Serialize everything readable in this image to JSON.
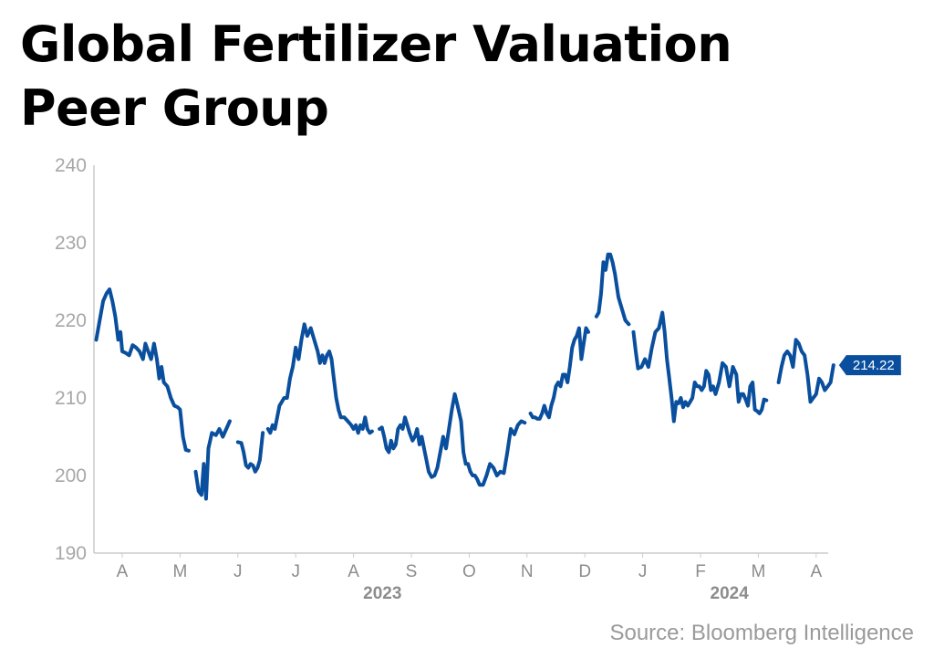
{
  "title_line1": "Global Fertilizer Valuation",
  "title_line2": "Peer Group",
  "source": "Source: Bloomberg Intelligence",
  "colors": {
    "line": "#0a4f9e",
    "axis": "#cccccc",
    "label_bg": "#0a4f9e"
  },
  "chart_data": {
    "type": "line",
    "title": "Global Fertilizer Valuation Peer Group",
    "xlabel": "",
    "ylabel": "",
    "ylim": [
      190,
      240
    ],
    "yticks": [
      190,
      200,
      210,
      220,
      230,
      240
    ],
    "x_tick_labels": [
      "A",
      "M",
      "J",
      "J",
      "A",
      "S",
      "O",
      "N",
      "D",
      "J",
      "F",
      "M",
      "A"
    ],
    "year_labels": [
      {
        "label": "2023",
        "month_index": 4.5
      },
      {
        "label": "2024",
        "month_index": 10.5
      }
    ],
    "x_unit": "months since 2023-04-01",
    "last_value_label": "214.22",
    "series": [
      {
        "name": "Global Fertilizer Valuation Peer Group",
        "segments": [
          [
            [
              -0.45,
              217.5
            ],
            [
              -0.39,
              220
            ],
            [
              -0.33,
              222.5
            ],
            [
              -0.27,
              223.5
            ],
            [
              -0.22,
              224
            ],
            [
              -0.17,
              222.5
            ],
            [
              -0.12,
              220.5
            ],
            [
              -0.07,
              217.5
            ],
            [
              -0.03,
              218.5
            ],
            [
              0.0,
              216
            ],
            [
              0.06,
              215.8
            ],
            [
              0.12,
              215.5
            ],
            [
              0.18,
              216.8
            ],
            [
              0.24,
              216.5
            ],
            [
              0.3,
              216
            ],
            [
              0.36,
              215
            ],
            [
              0.4,
              217
            ],
            [
              0.45,
              216
            ],
            [
              0.5,
              215
            ],
            [
              0.55,
              217
            ],
            [
              0.6,
              215
            ],
            [
              0.64,
              212.5
            ],
            [
              0.68,
              214
            ],
            [
              0.72,
              212
            ],
            [
              0.78,
              211.5
            ],
            [
              0.84,
              210
            ],
            [
              0.9,
              209
            ],
            [
              0.96,
              208.8
            ],
            [
              1.0,
              208.5
            ],
            [
              1.05,
              205
            ],
            [
              1.1,
              203.3
            ],
            [
              1.15,
              203.2
            ]
          ],
          [
            [
              1.27,
              200.5
            ],
            [
              1.32,
              198
            ],
            [
              1.37,
              197.5
            ],
            [
              1.41,
              201.5
            ],
            [
              1.45,
              197
            ],
            [
              1.49,
              203.5
            ],
            [
              1.55,
              205.5
            ],
            [
              1.62,
              205.2
            ],
            [
              1.68,
              206
            ],
            [
              1.74,
              205
            ],
            [
              1.8,
              206
            ],
            [
              1.86,
              207
            ]
          ],
          [
            [
              2.0,
              204.3
            ],
            [
              2.06,
              204.2
            ],
            [
              2.1,
              203
            ],
            [
              2.14,
              201.3
            ],
            [
              2.18,
              201
            ],
            [
              2.22,
              201.5
            ],
            [
              2.26,
              201.3
            ],
            [
              2.3,
              200.5
            ],
            [
              2.34,
              201
            ],
            [
              2.38,
              202
            ],
            [
              2.43,
              205.5
            ]
          ],
          [
            [
              2.52,
              206
            ],
            [
              2.56,
              205.5
            ],
            [
              2.6,
              206.5
            ],
            [
              2.64,
              206
            ],
            [
              2.68,
              207.5
            ],
            [
              2.72,
              209
            ],
            [
              2.76,
              209.5
            ],
            [
              2.8,
              210
            ],
            [
              2.85,
              210
            ],
            [
              2.9,
              212.5
            ],
            [
              2.95,
              214
            ],
            [
              3.0,
              216.5
            ],
            [
              3.05,
              215
            ],
            [
              3.1,
              217.5
            ],
            [
              3.15,
              219.5
            ],
            [
              3.2,
              218
            ],
            [
              3.26,
              219
            ],
            [
              3.32,
              217.5
            ],
            [
              3.38,
              216
            ],
            [
              3.42,
              214.5
            ],
            [
              3.46,
              215.5
            ],
            [
              3.5,
              214.5
            ],
            [
              3.54,
              215.5
            ],
            [
              3.58,
              216
            ],
            [
              3.62,
              215
            ],
            [
              3.66,
              212.5
            ],
            [
              3.7,
              210
            ],
            [
              3.74,
              208.5
            ],
            [
              3.78,
              207.5
            ],
            [
              3.84,
              207.5
            ],
            [
              3.9,
              207
            ],
            [
              3.96,
              206.5
            ],
            [
              4.0,
              206
            ],
            [
              4.04,
              206.5
            ],
            [
              4.08,
              205.5
            ],
            [
              4.12,
              206.5
            ],
            [
              4.16,
              206
            ],
            [
              4.2,
              207.5
            ],
            [
              4.24,
              206
            ],
            [
              4.28,
              205.5
            ],
            [
              4.32,
              205.7
            ]
          ],
          [
            [
              4.45,
              206
            ],
            [
              4.49,
              206.2
            ],
            [
              4.53,
              205
            ],
            [
              4.57,
              203.5
            ],
            [
              4.61,
              203
            ],
            [
              4.65,
              204.5
            ],
            [
              4.69,
              203.5
            ],
            [
              4.73,
              204
            ],
            [
              4.77,
              206
            ],
            [
              4.81,
              206.5
            ],
            [
              4.85,
              206
            ],
            [
              4.89,
              207.5
            ],
            [
              4.93,
              206.5
            ],
            [
              4.97,
              205.5
            ],
            [
              5.02,
              204.5
            ],
            [
              5.06,
              205
            ],
            [
              5.1,
              206
            ],
            [
              5.14,
              204
            ],
            [
              5.18,
              205
            ],
            [
              5.22,
              203.5
            ],
            [
              5.26,
              202
            ],
            [
              5.3,
              200.5
            ],
            [
              5.35,
              199.8
            ],
            [
              5.4,
              200
            ],
            [
              5.45,
              201
            ],
            [
              5.5,
              203
            ],
            [
              5.55,
              205
            ],
            [
              5.6,
              203.5
            ],
            [
              5.65,
              206
            ],
            [
              5.7,
              208.5
            ],
            [
              5.75,
              210.5
            ],
            [
              5.8,
              209
            ],
            [
              5.86,
              207
            ],
            [
              5.9,
              203
            ],
            [
              5.94,
              201.5
            ],
            [
              5.98,
              201.5
            ],
            [
              6.02,
              200.5
            ],
            [
              6.06,
              200
            ],
            [
              6.1,
              200
            ],
            [
              6.14,
              199.5
            ],
            [
              6.18,
              198.8
            ],
            [
              6.24,
              198.8
            ],
            [
              6.3,
              200
            ],
            [
              6.36,
              201.5
            ],
            [
              6.42,
              201
            ],
            [
              6.48,
              200
            ],
            [
              6.54,
              200.5
            ],
            [
              6.6,
              200.3
            ],
            [
              6.66,
              203
            ],
            [
              6.72,
              206
            ],
            [
              6.78,
              205.3
            ],
            [
              6.84,
              206.5
            ],
            [
              6.9,
              207
            ],
            [
              6.96,
              206.8
            ]
          ],
          [
            [
              7.06,
              208
            ],
            [
              7.1,
              207.5
            ],
            [
              7.14,
              207.5
            ],
            [
              7.18,
              207.3
            ],
            [
              7.22,
              207.3
            ],
            [
              7.26,
              208
            ],
            [
              7.3,
              209
            ],
            [
              7.34,
              208
            ],
            [
              7.38,
              207.5
            ],
            [
              7.42,
              209
            ],
            [
              7.46,
              210
            ],
            [
              7.5,
              211.5
            ],
            [
              7.54,
              212
            ],
            [
              7.58,
              211.5
            ],
            [
              7.62,
              213
            ],
            [
              7.66,
              213
            ],
            [
              7.7,
              212
            ],
            [
              7.74,
              214
            ],
            [
              7.78,
              216.5
            ],
            [
              7.82,
              217.5
            ],
            [
              7.86,
              218
            ],
            [
              7.9,
              219
            ],
            [
              7.94,
              215
            ],
            [
              7.98,
              217
            ],
            [
              8.02,
              219
            ],
            [
              8.06,
              218.5
            ]
          ],
          [
            [
              8.2,
              220.5
            ],
            [
              8.24,
              221
            ],
            [
              8.28,
              223.5
            ],
            [
              8.32,
              227.5
            ],
            [
              8.36,
              226.5
            ],
            [
              8.4,
              228.5
            ],
            [
              8.44,
              228.5
            ],
            [
              8.48,
              227.5
            ],
            [
              8.52,
              226
            ],
            [
              8.58,
              223
            ],
            [
              8.64,
              221.5
            ],
            [
              8.7,
              220
            ],
            [
              8.76,
              219.5
            ]
          ],
          [
            [
              8.84,
              218.5
            ],
            [
              8.88,
              216
            ],
            [
              8.92,
              213.8
            ],
            [
              8.98,
              214
            ],
            [
              9.04,
              215
            ],
            [
              9.1,
              214
            ],
            [
              9.16,
              216.5
            ],
            [
              9.22,
              218.5
            ],
            [
              9.28,
              219
            ],
            [
              9.34,
              221
            ],
            [
              9.38,
              218.5
            ],
            [
              9.42,
              215
            ],
            [
              9.46,
              212.5
            ],
            [
              9.5,
              210
            ],
            [
              9.54,
              207
            ],
            [
              9.58,
              209.5
            ],
            [
              9.62,
              209.3
            ],
            [
              9.66,
              210
            ],
            [
              9.7,
              208.8
            ],
            [
              9.74,
              209.5
            ],
            [
              9.78,
              209
            ],
            [
              9.82,
              209.5
            ],
            [
              9.86,
              210
            ],
            [
              9.9,
              212
            ],
            [
              9.94,
              211.5
            ],
            [
              9.98,
              211.5
            ],
            [
              10.02,
              211
            ],
            [
              10.06,
              211.5
            ],
            [
              10.1,
              213.5
            ],
            [
              10.14,
              213
            ],
            [
              10.18,
              211
            ],
            [
              10.22,
              211.5
            ],
            [
              10.26,
              210.5
            ],
            [
              10.32,
              212
            ],
            [
              10.38,
              214.5
            ],
            [
              10.44,
              214
            ],
            [
              10.5,
              211.5
            ],
            [
              10.56,
              214
            ],
            [
              10.62,
              213
            ],
            [
              10.66,
              209.5
            ],
            [
              10.7,
              210.5
            ],
            [
              10.74,
              210.5
            ],
            [
              10.78,
              209.8
            ],
            [
              10.82,
              209
            ],
            [
              10.86,
              211.5
            ],
            [
              10.9,
              212
            ],
            [
              10.94,
              208.5
            ],
            [
              10.98,
              208.3
            ],
            [
              11.02,
              208
            ],
            [
              11.06,
              208.5
            ],
            [
              11.1,
              209.8
            ],
            [
              11.14,
              209.7
            ]
          ],
          [
            [
              11.35,
              212
            ],
            [
              11.4,
              214
            ],
            [
              11.45,
              215.5
            ],
            [
              11.5,
              216
            ],
            [
              11.55,
              215.5
            ],
            [
              11.6,
              214
            ],
            [
              11.65,
              217.5
            ],
            [
              11.7,
              217
            ],
            [
              11.75,
              216
            ],
            [
              11.8,
              215.5
            ],
            [
              11.85,
              213
            ],
            [
              11.9,
              209.5
            ],
            [
              11.95,
              210
            ],
            [
              12.0,
              210.5
            ],
            [
              12.05,
              212.5
            ],
            [
              12.1,
              212
            ],
            [
              12.15,
              211
            ],
            [
              12.2,
              211.5
            ],
            [
              12.25,
              212
            ],
            [
              12.3,
              214.22
            ]
          ]
        ]
      }
    ]
  }
}
